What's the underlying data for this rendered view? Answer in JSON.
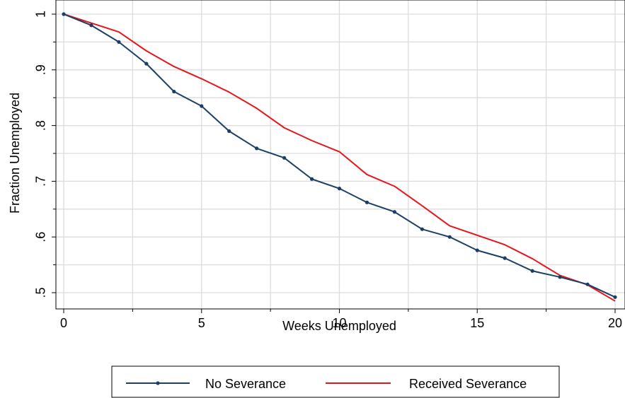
{
  "chart_data": {
    "type": "line",
    "title": "",
    "xlabel": "Weeks Unemployed",
    "ylabel": "Fraction Unemployed",
    "xlim": [
      0,
      20
    ],
    "ylim": [
      0.485,
      1.0
    ],
    "x_ticks": [
      0,
      5,
      10,
      15,
      20
    ],
    "x_tick_labels": [
      "0",
      "5",
      "10",
      "15",
      "20"
    ],
    "y_ticks": [
      0.5,
      0.6,
      0.7,
      0.8,
      0.9,
      1.0
    ],
    "y_tick_labels": [
      ".5",
      ".6",
      ".7",
      ".8",
      ".9",
      "1"
    ],
    "grid": true,
    "legend_position": "bottom",
    "colors": {
      "no_severance": "#1a3f66",
      "received_severance": "#e8141c",
      "grid": "#dcdcdc"
    },
    "x": [
      0,
      1,
      2,
      3,
      4,
      5,
      6,
      7,
      8,
      9,
      10,
      11,
      12,
      13,
      14,
      15,
      16,
      17,
      18,
      19,
      20
    ],
    "series": [
      {
        "name": "No Severance",
        "markers": true,
        "values": [
          1.0,
          0.98,
          0.95,
          0.911,
          0.861,
          0.835,
          0.79,
          0.759,
          0.742,
          0.704,
          0.687,
          0.662,
          0.645,
          0.614,
          0.6,
          0.576,
          0.562,
          0.539,
          0.528,
          0.515,
          0.492
        ]
      },
      {
        "name": "Received Severance",
        "markers": false,
        "values": [
          1.0,
          0.984,
          0.968,
          0.934,
          0.906,
          0.884,
          0.86,
          0.831,
          0.796,
          0.773,
          0.753,
          0.712,
          0.691,
          0.656,
          0.62,
          0.603,
          0.586,
          0.561,
          0.531,
          0.514,
          0.485
        ]
      }
    ]
  }
}
